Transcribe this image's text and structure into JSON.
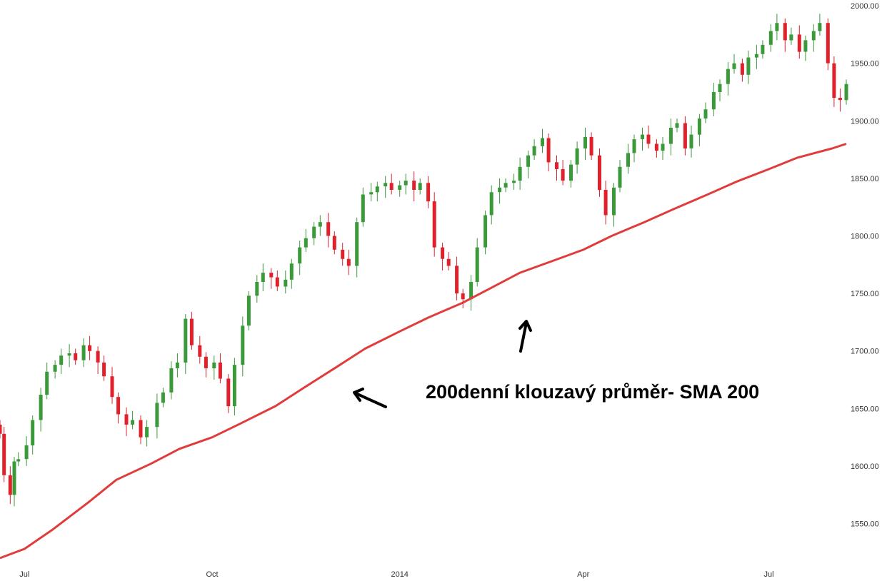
{
  "chart_data": {
    "type": "candlestick",
    "y_axis": {
      "position": "right",
      "ylim": [
        1515,
        2005
      ],
      "ticks": [
        1550,
        1600,
        1650,
        1700,
        1750,
        1800,
        1850,
        1900,
        1950,
        2000
      ],
      "tick_labels": [
        "1550.00",
        "1600.00",
        "1650.00",
        "1700.00",
        "1750.00",
        "1800.00",
        "1850.00",
        "1900.00",
        "1950.00",
        "2000.00"
      ]
    },
    "x_axis": {
      "range": [
        "2013-06-19",
        "2014-08-08"
      ],
      "ticks": [
        "2013-07-01",
        "2013-10-01",
        "2014-01-01",
        "2014-04-01",
        "2014-07-01"
      ],
      "tick_labels": [
        "Jul",
        "Oct",
        "2014",
        "Apr",
        "Jul"
      ]
    },
    "colors": {
      "up": "#3a9a3a",
      "down": "#e0202a",
      "sma": "#e03c3c"
    },
    "annotation": "200denní klouzavý průměr- SMA 200",
    "sma_200": {
      "x": [
        "2013-06-19",
        "2013-07-01",
        "2013-07-15",
        "2013-08-01",
        "2013-08-15",
        "2013-09-01",
        "2013-09-15",
        "2013-10-01",
        "2013-10-15",
        "2013-11-01",
        "2013-11-15",
        "2013-12-01",
        "2013-12-15",
        "2014-01-01",
        "2014-01-15",
        "2014-02-01",
        "2014-02-15",
        "2014-03-01",
        "2014-03-15",
        "2014-04-01",
        "2014-04-15",
        "2014-05-01",
        "2014-05-15",
        "2014-06-01",
        "2014-06-15",
        "2014-07-01",
        "2014-07-15",
        "2014-08-01",
        "2014-08-08"
      ],
      "y": [
        1520,
        1528,
        1545,
        1568,
        1588,
        1602,
        1615,
        1625,
        1637,
        1652,
        1668,
        1686,
        1702,
        1717,
        1729,
        1742,
        1755,
        1768,
        1777,
        1788,
        1800,
        1812,
        1823,
        1836,
        1847,
        1858,
        1868,
        1876,
        1880
      ]
    },
    "candles": {
      "x": [
        "2013-06-19",
        "2013-06-21",
        "2013-06-24",
        "2013-06-26",
        "2013-06-28",
        "2013-07-02",
        "2013-07-05",
        "2013-07-09",
        "2013-07-12",
        "2013-07-16",
        "2013-07-19",
        "2013-07-23",
        "2013-07-26",
        "2013-07-30",
        "2013-08-02",
        "2013-08-06",
        "2013-08-09",
        "2013-08-13",
        "2013-08-16",
        "2013-08-20",
        "2013-08-23",
        "2013-08-27",
        "2013-08-30",
        "2013-09-04",
        "2013-09-07",
        "2013-09-11",
        "2013-09-14",
        "2013-09-18",
        "2013-09-21",
        "2013-09-25",
        "2013-09-28",
        "2013-10-02",
        "2013-10-05",
        "2013-10-09",
        "2013-10-12",
        "2013-10-16",
        "2013-10-19",
        "2013-10-23",
        "2013-10-26",
        "2013-10-30",
        "2013-11-02",
        "2013-11-06",
        "2013-11-09",
        "2013-11-13",
        "2013-11-16",
        "2013-11-20",
        "2013-11-23",
        "2013-11-27",
        "2013-11-30",
        "2013-12-04",
        "2013-12-07",
        "2013-12-11",
        "2013-12-14",
        "2013-12-18",
        "2013-12-21",
        "2013-12-25",
        "2013-12-28",
        "2014-01-01",
        "2014-01-04",
        "2014-01-08",
        "2014-01-11",
        "2014-01-15",
        "2014-01-18",
        "2014-01-22",
        "2014-01-25",
        "2014-01-29",
        "2014-02-01",
        "2014-02-05",
        "2014-02-08",
        "2014-02-12",
        "2014-02-15",
        "2014-02-19",
        "2014-02-22",
        "2014-02-26",
        "2014-03-01",
        "2014-03-05",
        "2014-03-08",
        "2014-03-12",
        "2014-03-15",
        "2014-03-19",
        "2014-03-22",
        "2014-03-26",
        "2014-03-29",
        "2014-04-02",
        "2014-04-05",
        "2014-04-09",
        "2014-04-12",
        "2014-04-16",
        "2014-04-19",
        "2014-04-23",
        "2014-04-26",
        "2014-04-30",
        "2014-05-03",
        "2014-05-07",
        "2014-05-10",
        "2014-05-14",
        "2014-05-17",
        "2014-05-21",
        "2014-05-24",
        "2014-05-28",
        "2014-05-31",
        "2014-06-04",
        "2014-06-07",
        "2014-06-11",
        "2014-06-14",
        "2014-06-18",
        "2014-06-21",
        "2014-06-25",
        "2014-06-28",
        "2014-07-02",
        "2014-07-05",
        "2014-07-09",
        "2014-07-12",
        "2014-07-16",
        "2014-07-19",
        "2014-07-23",
        "2014-07-26",
        "2014-07-30",
        "2014-08-02",
        "2014-08-05",
        "2014-08-08"
      ],
      "close": [
        1628,
        1592,
        1575,
        1604,
        1606,
        1618,
        1640,
        1662,
        1682,
        1688,
        1696,
        1698,
        1692,
        1705,
        1700,
        1690,
        1678,
        1660,
        1645,
        1636,
        1640,
        1625,
        1634,
        1655,
        1664,
        1685,
        1690,
        1728,
        1705,
        1695,
        1685,
        1690,
        1676,
        1652,
        1688,
        1722,
        1748,
        1760,
        1768,
        1764,
        1756,
        1762,
        1776,
        1790,
        1798,
        1808,
        1812,
        1800,
        1788,
        1780,
        1774,
        1812,
        1836,
        1838,
        1843,
        1846,
        1840,
        1844,
        1848,
        1840,
        1846,
        1830,
        1790,
        1780,
        1774,
        1750,
        1745,
        1760,
        1790,
        1818,
        1838,
        1842,
        1846,
        1848,
        1860,
        1870,
        1878,
        1885,
        1864,
        1858,
        1848,
        1862,
        1876,
        1886,
        1870,
        1840,
        1818,
        1842,
        1860,
        1872,
        1884,
        1888,
        1880,
        1874,
        1880,
        1894,
        1898,
        1876,
        1888,
        1902,
        1910,
        1925,
        1932,
        1945,
        1950,
        1940,
        1955,
        1958,
        1966,
        1978,
        1985,
        1970,
        1975,
        1960,
        1970,
        1978,
        1985,
        1950,
        1920,
        1918,
        1932
      ]
    }
  }
}
